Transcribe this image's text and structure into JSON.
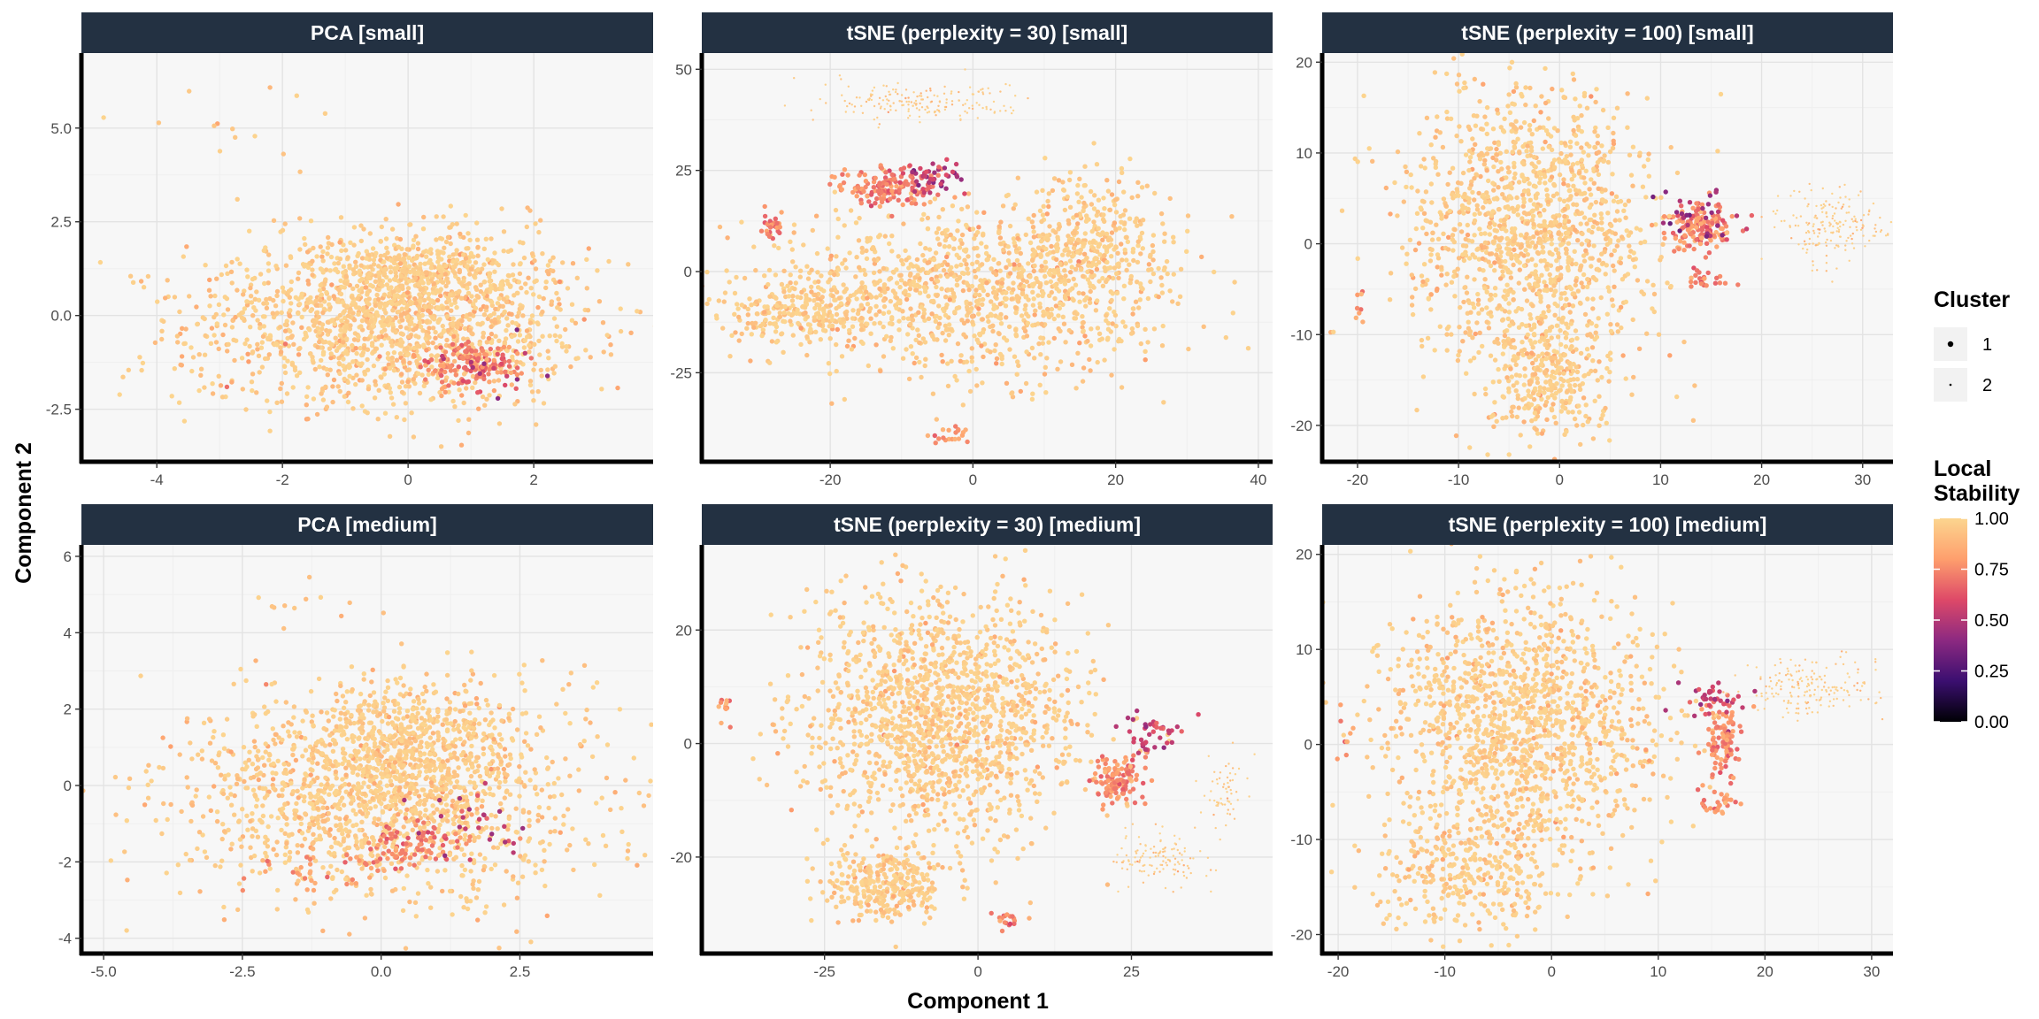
{
  "chart_data": {
    "type": "scatter",
    "xlabel": "Component 1",
    "ylabel": "Component 2",
    "colors": {
      "strip": "#233142",
      "panel_bg": "#f7f7f7",
      "grid": "#e3e3e3",
      "axis_line": "#000000",
      "scale": [
        "#000004",
        "#3b0f70",
        "#8c2981",
        "#de4968",
        "#fe9f6d",
        "#fcd58f"
      ]
    },
    "legend": {
      "position": "right",
      "cluster": {
        "title": "Cluster",
        "items": [
          "1",
          "2"
        ]
      },
      "stability": {
        "title_lines": [
          "Local",
          "Stability"
        ],
        "ticks": [
          "1.00",
          "0.75",
          "0.50",
          "0.25",
          "0.00"
        ],
        "range": [
          0,
          1
        ]
      }
    },
    "panels": [
      {
        "title": "PCA [small]",
        "xlim": [
          -5.2,
          3.9
        ],
        "ylim": [
          -3.9,
          7.0
        ],
        "xticks": [
          {
            "v": -4,
            "label": "-4"
          },
          {
            "v": -2,
            "label": "-2"
          },
          {
            "v": 0,
            "label": "0"
          },
          {
            "v": 2,
            "label": "2"
          }
        ],
        "yticks": [
          {
            "v": -2.5,
            "label": "-2.5"
          },
          {
            "v": 0,
            "label": "0.0"
          },
          {
            "v": 2.5,
            "label": "2.5"
          },
          {
            "v": 5,
            "label": "5.0"
          }
        ],
        "clusters": [
          {
            "cluster": 1,
            "n": 1500,
            "cx": -0.3,
            "cy": -0.2,
            "sx": 1.6,
            "sy": 1.1,
            "stab": 0.98
          },
          {
            "cluster": 1,
            "n": 420,
            "cx": 0.3,
            "cy": 1.1,
            "sx": 0.9,
            "sy": 0.6,
            "stab": 1.0
          },
          {
            "cluster": 1,
            "n": 160,
            "cx": 1.0,
            "cy": -1.3,
            "sx": 0.4,
            "sy": 0.28,
            "stab": 0.72
          },
          {
            "cluster": 1,
            "n": 12,
            "cx": 1.2,
            "cy": -1.4,
            "sx": 0.6,
            "sy": 0.4,
            "stab": 0.45
          },
          {
            "cluster": 1,
            "n": 14,
            "cx": -2.6,
            "cy": 5.2,
            "sx": 0.9,
            "sy": 0.6,
            "stab": 0.95
          }
        ]
      },
      {
        "title": "tSNE (perplexity = 30) [small]",
        "xlim": [
          -38,
          42
        ],
        "ylim": [
          -47,
          54
        ],
        "xticks": [
          {
            "v": -20,
            "label": "-20"
          },
          {
            "v": 0,
            "label": "0"
          },
          {
            "v": 20,
            "label": "20"
          },
          {
            "v": 40,
            "label": "40"
          }
        ],
        "yticks": [
          {
            "v": -25,
            "label": "-25"
          },
          {
            "v": 0,
            "label": "0"
          },
          {
            "v": 25,
            "label": "25"
          },
          {
            "v": 50,
            "label": "50"
          }
        ],
        "clusters": [
          {
            "cluster": 1,
            "n": 1100,
            "cx": 0,
            "cy": -5,
            "sx": 14,
            "sy": 10,
            "stab": 0.99
          },
          {
            "cluster": 1,
            "n": 300,
            "cx": 16,
            "cy": 8,
            "sx": 5,
            "sy": 8,
            "stab": 0.99
          },
          {
            "cluster": 1,
            "n": 220,
            "cx": -25,
            "cy": -10,
            "sx": 5,
            "sy": 4,
            "stab": 0.99
          },
          {
            "cluster": 1,
            "n": 150,
            "cx": -12,
            "cy": 21,
            "sx": 3.5,
            "sy": 2.5,
            "stab": 0.72
          },
          {
            "cluster": 1,
            "n": 40,
            "cx": -6,
            "cy": 23,
            "sx": 2.5,
            "sy": 2,
            "stab": 0.5
          },
          {
            "cluster": 1,
            "n": 25,
            "cx": -28,
            "cy": 11,
            "sx": 0.8,
            "sy": 2,
            "stab": 0.72
          },
          {
            "cluster": 1,
            "n": 20,
            "cx": -3,
            "cy": -40,
            "sx": 1.5,
            "sy": 1.2,
            "stab": 0.8
          },
          {
            "cluster": 2,
            "n": 180,
            "cx": -7,
            "cy": 42,
            "sx": 7,
            "sy": 2.5,
            "stab": 0.99
          }
        ]
      },
      {
        "title": "tSNE (perplexity = 100) [small]",
        "xlim": [
          -23.5,
          33
        ],
        "ylim": [
          -24,
          21
        ],
        "xticks": [
          {
            "v": -20,
            "label": "-20"
          },
          {
            "v": -10,
            "label": "-10"
          },
          {
            "v": 0,
            "label": "0"
          },
          {
            "v": 10,
            "label": "10"
          },
          {
            "v": 20,
            "label": "20"
          },
          {
            "v": 30,
            "label": "30"
          }
        ],
        "yticks": [
          {
            "v": -20,
            "label": "-20"
          },
          {
            "v": -10,
            "label": "-10"
          },
          {
            "v": 0,
            "label": "0"
          },
          {
            "v": 10,
            "label": "10"
          },
          {
            "v": 20,
            "label": "20"
          }
        ],
        "clusters": [
          {
            "cluster": 1,
            "n": 1300,
            "cx": -3,
            "cy": 2,
            "sx": 6,
            "sy": 7.5,
            "stab": 0.99
          },
          {
            "cluster": 1,
            "n": 300,
            "cx": -1,
            "cy": -15,
            "sx": 3,
            "sy": 3,
            "stab": 0.99
          },
          {
            "cluster": 1,
            "n": 150,
            "cx": 14,
            "cy": 2,
            "sx": 1.6,
            "sy": 1.3,
            "stab": 0.75
          },
          {
            "cluster": 1,
            "n": 30,
            "cx": 14,
            "cy": 3,
            "sx": 2.5,
            "sy": 1.5,
            "stab": 0.45
          },
          {
            "cluster": 1,
            "n": 25,
            "cx": 15,
            "cy": -4,
            "sx": 1.3,
            "sy": 0.6,
            "stab": 0.72
          },
          {
            "cluster": 1,
            "n": 8,
            "cx": -20,
            "cy": -7,
            "sx": 0.6,
            "sy": 1,
            "stab": 0.75
          },
          {
            "cluster": 2,
            "n": 180,
            "cx": 27,
            "cy": 2,
            "sx": 2.5,
            "sy": 2,
            "stab": 0.99
          }
        ]
      },
      {
        "title": "PCA [medium]",
        "xlim": [
          -5.4,
          4.9
        ],
        "ylim": [
          -4.4,
          6.3
        ],
        "xticks": [
          {
            "v": -5,
            "label": "-5.0"
          },
          {
            "v": -2.5,
            "label": "-2.5"
          },
          {
            "v": 0,
            "label": "0.0"
          },
          {
            "v": 2.5,
            "label": "2.5"
          }
        ],
        "yticks": [
          {
            "v": -4,
            "label": "-4"
          },
          {
            "v": -2,
            "label": "-2"
          },
          {
            "v": 0,
            "label": "0"
          },
          {
            "v": 2,
            "label": "2"
          },
          {
            "v": 4,
            "label": "4"
          },
          {
            "v": 6,
            "label": "6"
          }
        ],
        "clusters": [
          {
            "cluster": 1,
            "n": 1500,
            "cx": 0,
            "cy": -0.2,
            "sx": 1.8,
            "sy": 1.3,
            "stab": 0.98
          },
          {
            "cluster": 1,
            "n": 420,
            "cx": 0.5,
            "cy": 1.2,
            "sx": 1.0,
            "sy": 0.7,
            "stab": 1.0
          },
          {
            "cluster": 1,
            "n": 90,
            "cx": 0.4,
            "cy": -1.6,
            "sx": 0.5,
            "sy": 0.3,
            "stab": 0.72
          },
          {
            "cluster": 1,
            "n": 30,
            "cx": 1.7,
            "cy": -1.1,
            "sx": 0.5,
            "sy": 0.5,
            "stab": 0.5
          },
          {
            "cluster": 1,
            "n": 30,
            "cx": -1.2,
            "cy": -2.3,
            "sx": 0.6,
            "sy": 0.3,
            "stab": 0.78
          },
          {
            "cluster": 1,
            "n": 12,
            "cx": -1.3,
            "cy": 4.8,
            "sx": 0.7,
            "sy": 0.6,
            "stab": 0.95
          }
        ]
      },
      {
        "title": "tSNE (perplexity = 30) [medium]",
        "xlim": [
          -45,
          48
        ],
        "ylim": [
          -37,
          35
        ],
        "xticks": [
          {
            "v": -25,
            "label": "-25"
          },
          {
            "v": 0,
            "label": "0"
          },
          {
            "v": 25,
            "label": "25"
          }
        ],
        "yticks": [
          {
            "v": -20,
            "label": "-20"
          },
          {
            "v": 0,
            "label": "0"
          },
          {
            "v": 20,
            "label": "20"
          }
        ],
        "clusters": [
          {
            "cluster": 1,
            "n": 1500,
            "cx": -6,
            "cy": 5,
            "sx": 11,
            "sy": 11,
            "stab": 0.99
          },
          {
            "cluster": 1,
            "n": 300,
            "cx": -15,
            "cy": -25,
            "sx": 5,
            "sy": 3,
            "stab": 0.99
          },
          {
            "cluster": 1,
            "n": 120,
            "cx": 23,
            "cy": -6,
            "sx": 2.2,
            "sy": 2.2,
            "stab": 0.75
          },
          {
            "cluster": 1,
            "n": 40,
            "cx": 29,
            "cy": 2,
            "sx": 2.5,
            "sy": 1.5,
            "stab": 0.55
          },
          {
            "cluster": 1,
            "n": 18,
            "cx": 5,
            "cy": -31,
            "sx": 1.2,
            "sy": 1,
            "stab": 0.7
          },
          {
            "cluster": 1,
            "n": 12,
            "cx": -41,
            "cy": 7,
            "sx": 0.6,
            "sy": 2,
            "stab": 0.8
          },
          {
            "cluster": 2,
            "n": 120,
            "cx": 30,
            "cy": -20,
            "sx": 4,
            "sy": 2.5,
            "stab": 0.99
          },
          {
            "cluster": 2,
            "n": 60,
            "cx": 40,
            "cy": -9,
            "sx": 1.5,
            "sy": 3,
            "stab": 0.99
          }
        ]
      },
      {
        "title": "tSNE (perplexity = 100) [medium]",
        "xlim": [
          -21.5,
          32
        ],
        "ylim": [
          -22,
          21
        ],
        "xticks": [
          {
            "v": -20,
            "label": "-20"
          },
          {
            "v": -10,
            "label": "-10"
          },
          {
            "v": 0,
            "label": "0"
          },
          {
            "v": 10,
            "label": "10"
          },
          {
            "v": 20,
            "label": "20"
          },
          {
            "v": 30,
            "label": "30"
          }
        ],
        "yticks": [
          {
            "v": -20,
            "label": "-20"
          },
          {
            "v": -10,
            "label": "-10"
          },
          {
            "v": 0,
            "label": "0"
          },
          {
            "v": 10,
            "label": "10"
          },
          {
            "v": 20,
            "label": "20"
          }
        ],
        "clusters": [
          {
            "cluster": 1,
            "n": 1400,
            "cx": -3,
            "cy": 2,
            "sx": 6.5,
            "sy": 7,
            "stab": 0.99
          },
          {
            "cluster": 1,
            "n": 300,
            "cx": -8,
            "cy": -14,
            "sx": 4,
            "sy": 3,
            "stab": 0.99
          },
          {
            "cluster": 1,
            "n": 110,
            "cx": 16,
            "cy": 0,
            "sx": 0.9,
            "sy": 2.2,
            "stab": 0.75
          },
          {
            "cluster": 1,
            "n": 35,
            "cx": 15,
            "cy": 5,
            "sx": 1.3,
            "sy": 1.0,
            "stab": 0.55
          },
          {
            "cluster": 1,
            "n": 25,
            "cx": 15.5,
            "cy": -6.5,
            "sx": 0.9,
            "sy": 0.5,
            "stab": 0.75
          },
          {
            "cluster": 1,
            "n": 8,
            "cx": -19.5,
            "cy": 0,
            "sx": 0.3,
            "sy": 1.2,
            "stab": 0.8
          },
          {
            "cluster": 2,
            "n": 180,
            "cx": 24,
            "cy": 6,
            "sx": 3,
            "sy": 1.5,
            "stab": 0.99
          }
        ]
      }
    ]
  }
}
